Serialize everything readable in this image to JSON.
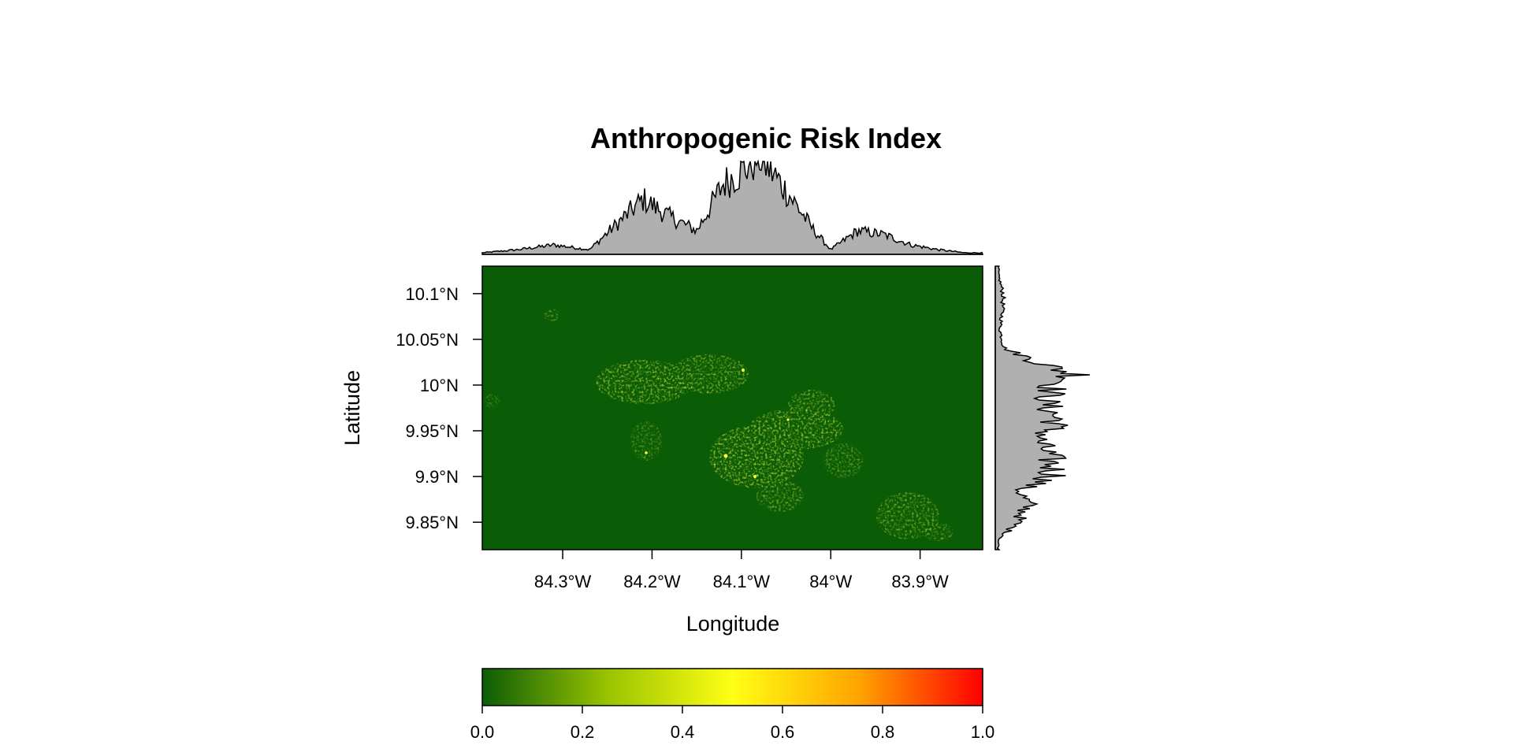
{
  "chart_data": {
    "type": "heatmap",
    "title": "Anthropogenic Risk Index",
    "xlabel": "Longitude",
    "ylabel": "Latitude",
    "x_ticks": [
      {
        "value": -84.3,
        "label": "84.3°W"
      },
      {
        "value": -84.2,
        "label": "84.2°W"
      },
      {
        "value": -84.1,
        "label": "84.1°W"
      },
      {
        "value": -84.0,
        "label": "84°W"
      },
      {
        "value": -83.9,
        "label": "83.9°W"
      }
    ],
    "y_ticks": [
      {
        "value": 10.1,
        "label": "10.1°N"
      },
      {
        "value": 10.05,
        "label": "10.05°N"
      },
      {
        "value": 10.0,
        "label": "10°N"
      },
      {
        "value": 9.95,
        "label": "9.95°N"
      },
      {
        "value": 9.9,
        "label": "9.9°N"
      },
      {
        "value": 9.85,
        "label": "9.85°N"
      }
    ],
    "xlim": [
      -84.39,
      -83.83
    ],
    "ylim": [
      9.82,
      10.13
    ],
    "colorbar": {
      "range": [
        0.0,
        1.0
      ],
      "ticks": [
        "0.0",
        "0.2",
        "0.4",
        "0.6",
        "0.8",
        "1.0"
      ],
      "colors": [
        "#0b5c06",
        "#99c300",
        "#ffff14",
        "#ffa500",
        "#ff0000"
      ]
    },
    "values_summary": "Mostly near 0.0; clustered values roughly 0.2–0.5 around 84.25°W–83.95°W, 9.86°N–10.02°N",
    "marginal_x": {
      "description": "Column-wise mean of the index along longitude",
      "x": [
        -84.39,
        -84.35,
        -84.31,
        -84.27,
        -84.24,
        -84.21,
        -84.18,
        -84.15,
        -84.12,
        -84.1,
        -84.08,
        -84.06,
        -84.04,
        -84.02,
        -84.0,
        -83.97,
        -83.94,
        -83.91,
        -83.88,
        -83.85
      ],
      "y": [
        0.002,
        0.006,
        0.012,
        0.006,
        0.038,
        0.07,
        0.048,
        0.03,
        0.09,
        0.105,
        0.125,
        0.096,
        0.065,
        0.032,
        0.006,
        0.03,
        0.025,
        0.012,
        0.006,
        0.002
      ]
    },
    "marginal_y": {
      "description": "Row-wise mean of the index along latitude",
      "y": [
        10.12,
        10.1,
        10.08,
        10.06,
        10.04,
        10.02,
        10.01,
        10.0,
        9.98,
        9.96,
        9.94,
        9.92,
        9.9,
        9.885,
        9.87,
        9.85,
        9.83
      ],
      "x": [
        0.004,
        0.01,
        0.009,
        0.006,
        0.012,
        0.07,
        0.11,
        0.075,
        0.065,
        0.08,
        0.055,
        0.07,
        0.075,
        0.03,
        0.042,
        0.028,
        0.004
      ]
    }
  }
}
